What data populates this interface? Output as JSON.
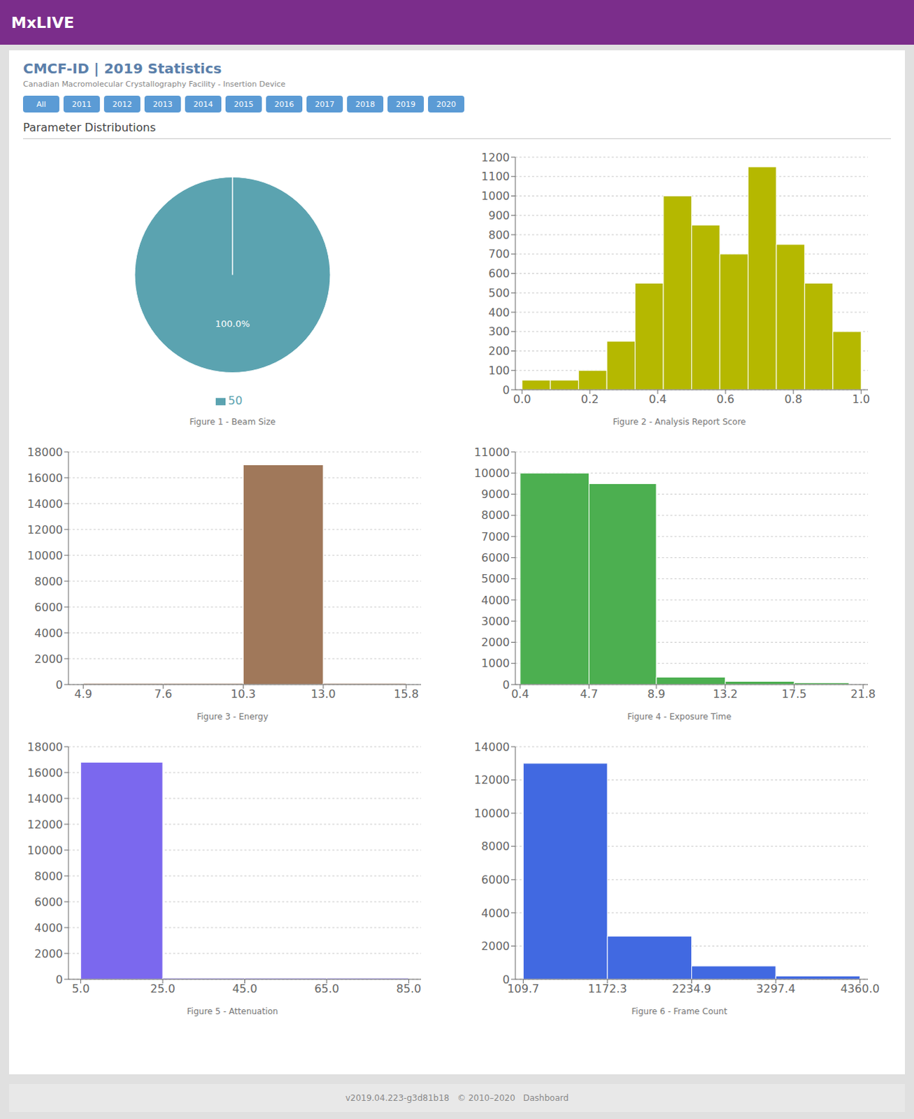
{
  "header": "MxLIVE",
  "title": "CMCF-ID | 2019 Statistics",
  "subtitle": "Canadian Macromolecular Crystallography Facility - Insertion Device",
  "tabs": [
    "All",
    "2011",
    "2012",
    "2013",
    "2014",
    "2015",
    "2016",
    "2017",
    "2018",
    "2019",
    "2020"
  ],
  "section_title": "Parameter Distributions",
  "footer": "v2019.04.223-g3d81b18   © 2010–2020   Dashboard",
  "chart_data": [
    {
      "type": "pie",
      "title": "Figure 1 - Beam Size",
      "categories": [
        "50"
      ],
      "values": [
        100.0
      ],
      "value_labels": [
        "100.0%"
      ],
      "colors": [
        "#5ba3b0"
      ],
      "data_labels": true,
      "legend": "bottom"
    },
    {
      "type": "histogram",
      "title": "Figure 2 - Analysis Report Score",
      "bins": [
        0.0,
        0.08333333333333333,
        0.16666666666666666,
        0.25,
        0.3333333333333333,
        0.4166666666666667,
        0.5,
        0.5833333333333334,
        0.6666666666666666,
        0.75,
        0.8333333333333334,
        0.9166666666666666,
        1.0
      ],
      "values": [
        50,
        50,
        100,
        250,
        550,
        1000,
        850,
        700,
        1150,
        750,
        550,
        300
      ],
      "color": "#b5b800",
      "xlim": [
        -0.02,
        1.02
      ],
      "xticks": [
        {
          "value": 0.0,
          "label": "0.0"
        },
        0.2,
        0.4,
        0.6,
        0.8,
        {
          "value": 1.0,
          "label": "1.0"
        }
      ],
      "ylim": [
        0,
        1200
      ],
      "yticks": [
        0,
        100,
        200,
        300,
        400,
        500,
        600,
        700,
        800,
        900,
        1000,
        1100,
        1200
      ],
      "grid": true
    },
    {
      "type": "histogram",
      "title": "Figure 3 - Energy",
      "bins": [
        4.9,
        7.6,
        10.3,
        13.0,
        15.8
      ],
      "values": [
        100,
        100,
        17000,
        100
      ],
      "color": "#a0785a",
      "xlim": [
        4.4,
        16.3
      ],
      "xticks": [
        4.9,
        7.6,
        10.3,
        {
          "value": 13.0,
          "label": "13.0"
        },
        15.8
      ],
      "ylim": [
        0,
        18000
      ],
      "yticks": [
        0,
        2000,
        4000,
        6000,
        8000,
        10000,
        12000,
        14000,
        16000,
        18000
      ],
      "grid": true
    },
    {
      "type": "histogram",
      "title": "Figure 4 - Exposure Time",
      "bins": [
        0.4,
        4.7,
        8.9,
        13.2,
        17.5,
        20.92
      ],
      "values": [
        10000,
        9500,
        350,
        150,
        80
      ],
      "color": "#4caf50",
      "xlim": [
        0.1,
        22.1
      ],
      "xticks": [
        0.4,
        4.7,
        8.9,
        13.2,
        17.5,
        21.8
      ],
      "ylim": [
        0,
        11000
      ],
      "yticks": [
        0,
        1000,
        2000,
        3000,
        4000,
        5000,
        6000,
        7000,
        8000,
        9000,
        10000,
        11000
      ],
      "grid": true
    },
    {
      "type": "histogram",
      "title": "Figure 5 - Attenuation",
      "bins": [
        5.0,
        25.0,
        45.0,
        65.0,
        85.0
      ],
      "values": [
        16800,
        100,
        100,
        100
      ],
      "color": "#7b68ee",
      "xlim": [
        2.0,
        88.0
      ],
      "xticks": [
        {
          "value": 5.0,
          "label": "5.0"
        },
        {
          "value": 25.0,
          "label": "25.0"
        },
        {
          "value": 45.0,
          "label": "45.0"
        },
        {
          "value": 65.0,
          "label": "65.0"
        },
        {
          "value": 85.0,
          "label": "85.0"
        }
      ],
      "ylim": [
        0,
        18000
      ],
      "yticks": [
        0,
        2000,
        4000,
        6000,
        8000,
        10000,
        12000,
        14000,
        16000,
        18000
      ],
      "grid": true
    },
    {
      "type": "histogram",
      "title": "Figure 6 - Frame Count",
      "bins": [
        109.7,
        1172.3,
        2234.9,
        3297.4,
        4360.0
      ],
      "values": [
        13000,
        2600,
        800,
        200
      ],
      "color": "#4169e1",
      "xlim": [
        9.7,
        4460.0
      ],
      "xticks": [
        109.7,
        1172.3,
        2234.9,
        3297.4,
        {
          "value": 4360.0,
          "label": "4360.0"
        }
      ],
      "ylim": [
        0,
        14000
      ],
      "yticks": [
        0,
        2000,
        4000,
        6000,
        8000,
        10000,
        12000,
        14000
      ],
      "grid": true
    }
  ]
}
